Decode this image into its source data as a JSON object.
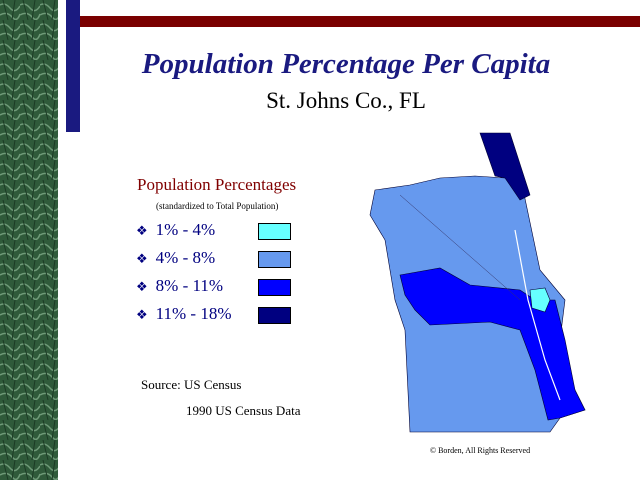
{
  "header": {
    "title": "Population Percentage Per Capita",
    "subtitle": "St. Johns Co., FL"
  },
  "legend": {
    "title": "Population Percentages",
    "subtitle": "(standardized to Total Population)",
    "items": [
      {
        "label": "1% - 4%",
        "color": "#66ffff"
      },
      {
        "label": "4% - 8%",
        "color": "#6699ee"
      },
      {
        "label": "8% - 11%",
        "color": "#0000ff"
      },
      {
        "label": "11% - 18%",
        "color": "#000080"
      }
    ]
  },
  "source": "Source: US Census",
  "note": "1990 US Census Data",
  "copyright": "© Borden, All Rights Reserved"
}
